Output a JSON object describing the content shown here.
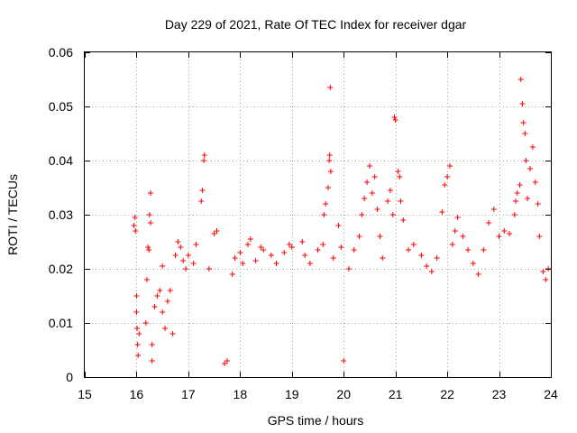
{
  "chart_data": {
    "type": "scatter",
    "title": "Day 229 of 2021, Rate Of TEC Index for receiver dgar",
    "xlabel": "GPS time / hours",
    "ylabel": "ROTI / TECUs",
    "xlim": [
      15,
      24
    ],
    "ylim": [
      0,
      0.06
    ],
    "xticks": [
      "15",
      "16",
      "17",
      "18",
      "19",
      "20",
      "21",
      "22",
      "23",
      "24"
    ],
    "yticks": [
      "0",
      "0.01",
      "0.02",
      "0.03",
      "0.04",
      "0.05",
      "0.06"
    ],
    "grid": true,
    "marker": "plus",
    "marker_color": "#ff0000",
    "series": [
      {
        "points": [
          [
            15.95,
            0.028
          ],
          [
            15.97,
            0.0295
          ],
          [
            15.98,
            0.027
          ],
          [
            16.0,
            0.015
          ],
          [
            16.0,
            0.012
          ],
          [
            16.01,
            0.009
          ],
          [
            16.02,
            0.006
          ],
          [
            16.03,
            0.004
          ],
          [
            16.05,
            0.008
          ],
          [
            16.18,
            0.01
          ],
          [
            16.2,
            0.018
          ],
          [
            16.22,
            0.024
          ],
          [
            16.24,
            0.0235
          ],
          [
            16.25,
            0.03
          ],
          [
            16.27,
            0.0285
          ],
          [
            16.27,
            0.034
          ],
          [
            16.3,
            0.006
          ],
          [
            16.3,
            0.003
          ],
          [
            16.35,
            0.013
          ],
          [
            16.4,
            0.015
          ],
          [
            16.45,
            0.016
          ],
          [
            16.5,
            0.012
          ],
          [
            16.5,
            0.0205
          ],
          [
            16.55,
            0.009
          ],
          [
            16.6,
            0.014
          ],
          [
            16.65,
            0.016
          ],
          [
            16.7,
            0.008
          ],
          [
            16.75,
            0.0225
          ],
          [
            16.8,
            0.025
          ],
          [
            16.85,
            0.024
          ],
          [
            16.9,
            0.0215
          ],
          [
            16.95,
            0.02
          ],
          [
            17.0,
            0.0225
          ],
          [
            17.1,
            0.021
          ],
          [
            17.15,
            0.0245
          ],
          [
            17.25,
            0.0325
          ],
          [
            17.27,
            0.0345
          ],
          [
            17.3,
            0.04
          ],
          [
            17.31,
            0.041
          ],
          [
            17.4,
            0.02
          ],
          [
            17.5,
            0.0265
          ],
          [
            17.55,
            0.027
          ],
          [
            17.7,
            0.0025
          ],
          [
            17.75,
            0.003
          ],
          [
            17.85,
            0.019
          ],
          [
            17.9,
            0.022
          ],
          [
            18.0,
            0.023
          ],
          [
            18.05,
            0.021
          ],
          [
            18.15,
            0.0245
          ],
          [
            18.2,
            0.0255
          ],
          [
            18.3,
            0.0215
          ],
          [
            18.4,
            0.024
          ],
          [
            18.45,
            0.0235
          ],
          [
            18.6,
            0.0225
          ],
          [
            18.7,
            0.021
          ],
          [
            18.85,
            0.023
          ],
          [
            18.95,
            0.0245
          ],
          [
            19.0,
            0.024
          ],
          [
            19.2,
            0.025
          ],
          [
            19.25,
            0.0225
          ],
          [
            19.35,
            0.021
          ],
          [
            19.5,
            0.0235
          ],
          [
            19.6,
            0.0245
          ],
          [
            19.62,
            0.03
          ],
          [
            19.65,
            0.032
          ],
          [
            19.7,
            0.035
          ],
          [
            19.72,
            0.04
          ],
          [
            19.73,
            0.041
          ],
          [
            19.74,
            0.0535
          ],
          [
            19.75,
            0.038
          ],
          [
            19.8,
            0.022
          ],
          [
            19.9,
            0.028
          ],
          [
            19.95,
            0.024
          ],
          [
            20.0,
            0.003
          ],
          [
            20.1,
            0.02
          ],
          [
            20.2,
            0.0235
          ],
          [
            20.3,
            0.026
          ],
          [
            20.35,
            0.03
          ],
          [
            20.4,
            0.033
          ],
          [
            20.45,
            0.036
          ],
          [
            20.5,
            0.039
          ],
          [
            20.55,
            0.034
          ],
          [
            20.6,
            0.037
          ],
          [
            20.65,
            0.031
          ],
          [
            20.7,
            0.026
          ],
          [
            20.75,
            0.022
          ],
          [
            20.85,
            0.0325
          ],
          [
            20.9,
            0.0345
          ],
          [
            20.95,
            0.03
          ],
          [
            20.98,
            0.048
          ],
          [
            21.0,
            0.0475
          ],
          [
            21.05,
            0.038
          ],
          [
            21.08,
            0.037
          ],
          [
            21.1,
            0.0325
          ],
          [
            21.15,
            0.029
          ],
          [
            21.25,
            0.0235
          ],
          [
            21.35,
            0.0245
          ],
          [
            21.5,
            0.0225
          ],
          [
            21.6,
            0.0205
          ],
          [
            21.7,
            0.0195
          ],
          [
            21.8,
            0.022
          ],
          [
            21.9,
            0.0305
          ],
          [
            21.95,
            0.0355
          ],
          [
            22.0,
            0.037
          ],
          [
            22.05,
            0.039
          ],
          [
            22.1,
            0.0245
          ],
          [
            22.15,
            0.027
          ],
          [
            22.2,
            0.0295
          ],
          [
            22.3,
            0.026
          ],
          [
            22.4,
            0.0235
          ],
          [
            22.5,
            0.021
          ],
          [
            22.6,
            0.019
          ],
          [
            22.7,
            0.0235
          ],
          [
            22.8,
            0.0285
          ],
          [
            22.9,
            0.031
          ],
          [
            23.0,
            0.026
          ],
          [
            23.1,
            0.027
          ],
          [
            23.2,
            0.0265
          ],
          [
            23.3,
            0.03
          ],
          [
            23.32,
            0.0325
          ],
          [
            23.35,
            0.034
          ],
          [
            23.4,
            0.0355
          ],
          [
            23.42,
            0.055
          ],
          [
            23.45,
            0.0505
          ],
          [
            23.47,
            0.047
          ],
          [
            23.5,
            0.045
          ],
          [
            23.52,
            0.04
          ],
          [
            23.55,
            0.033
          ],
          [
            23.6,
            0.0385
          ],
          [
            23.65,
            0.0425
          ],
          [
            23.7,
            0.036
          ],
          [
            23.75,
            0.032
          ],
          [
            23.78,
            0.026
          ],
          [
            23.85,
            0.0195
          ],
          [
            23.9,
            0.018
          ],
          [
            23.95,
            0.02
          ]
        ]
      }
    ]
  }
}
